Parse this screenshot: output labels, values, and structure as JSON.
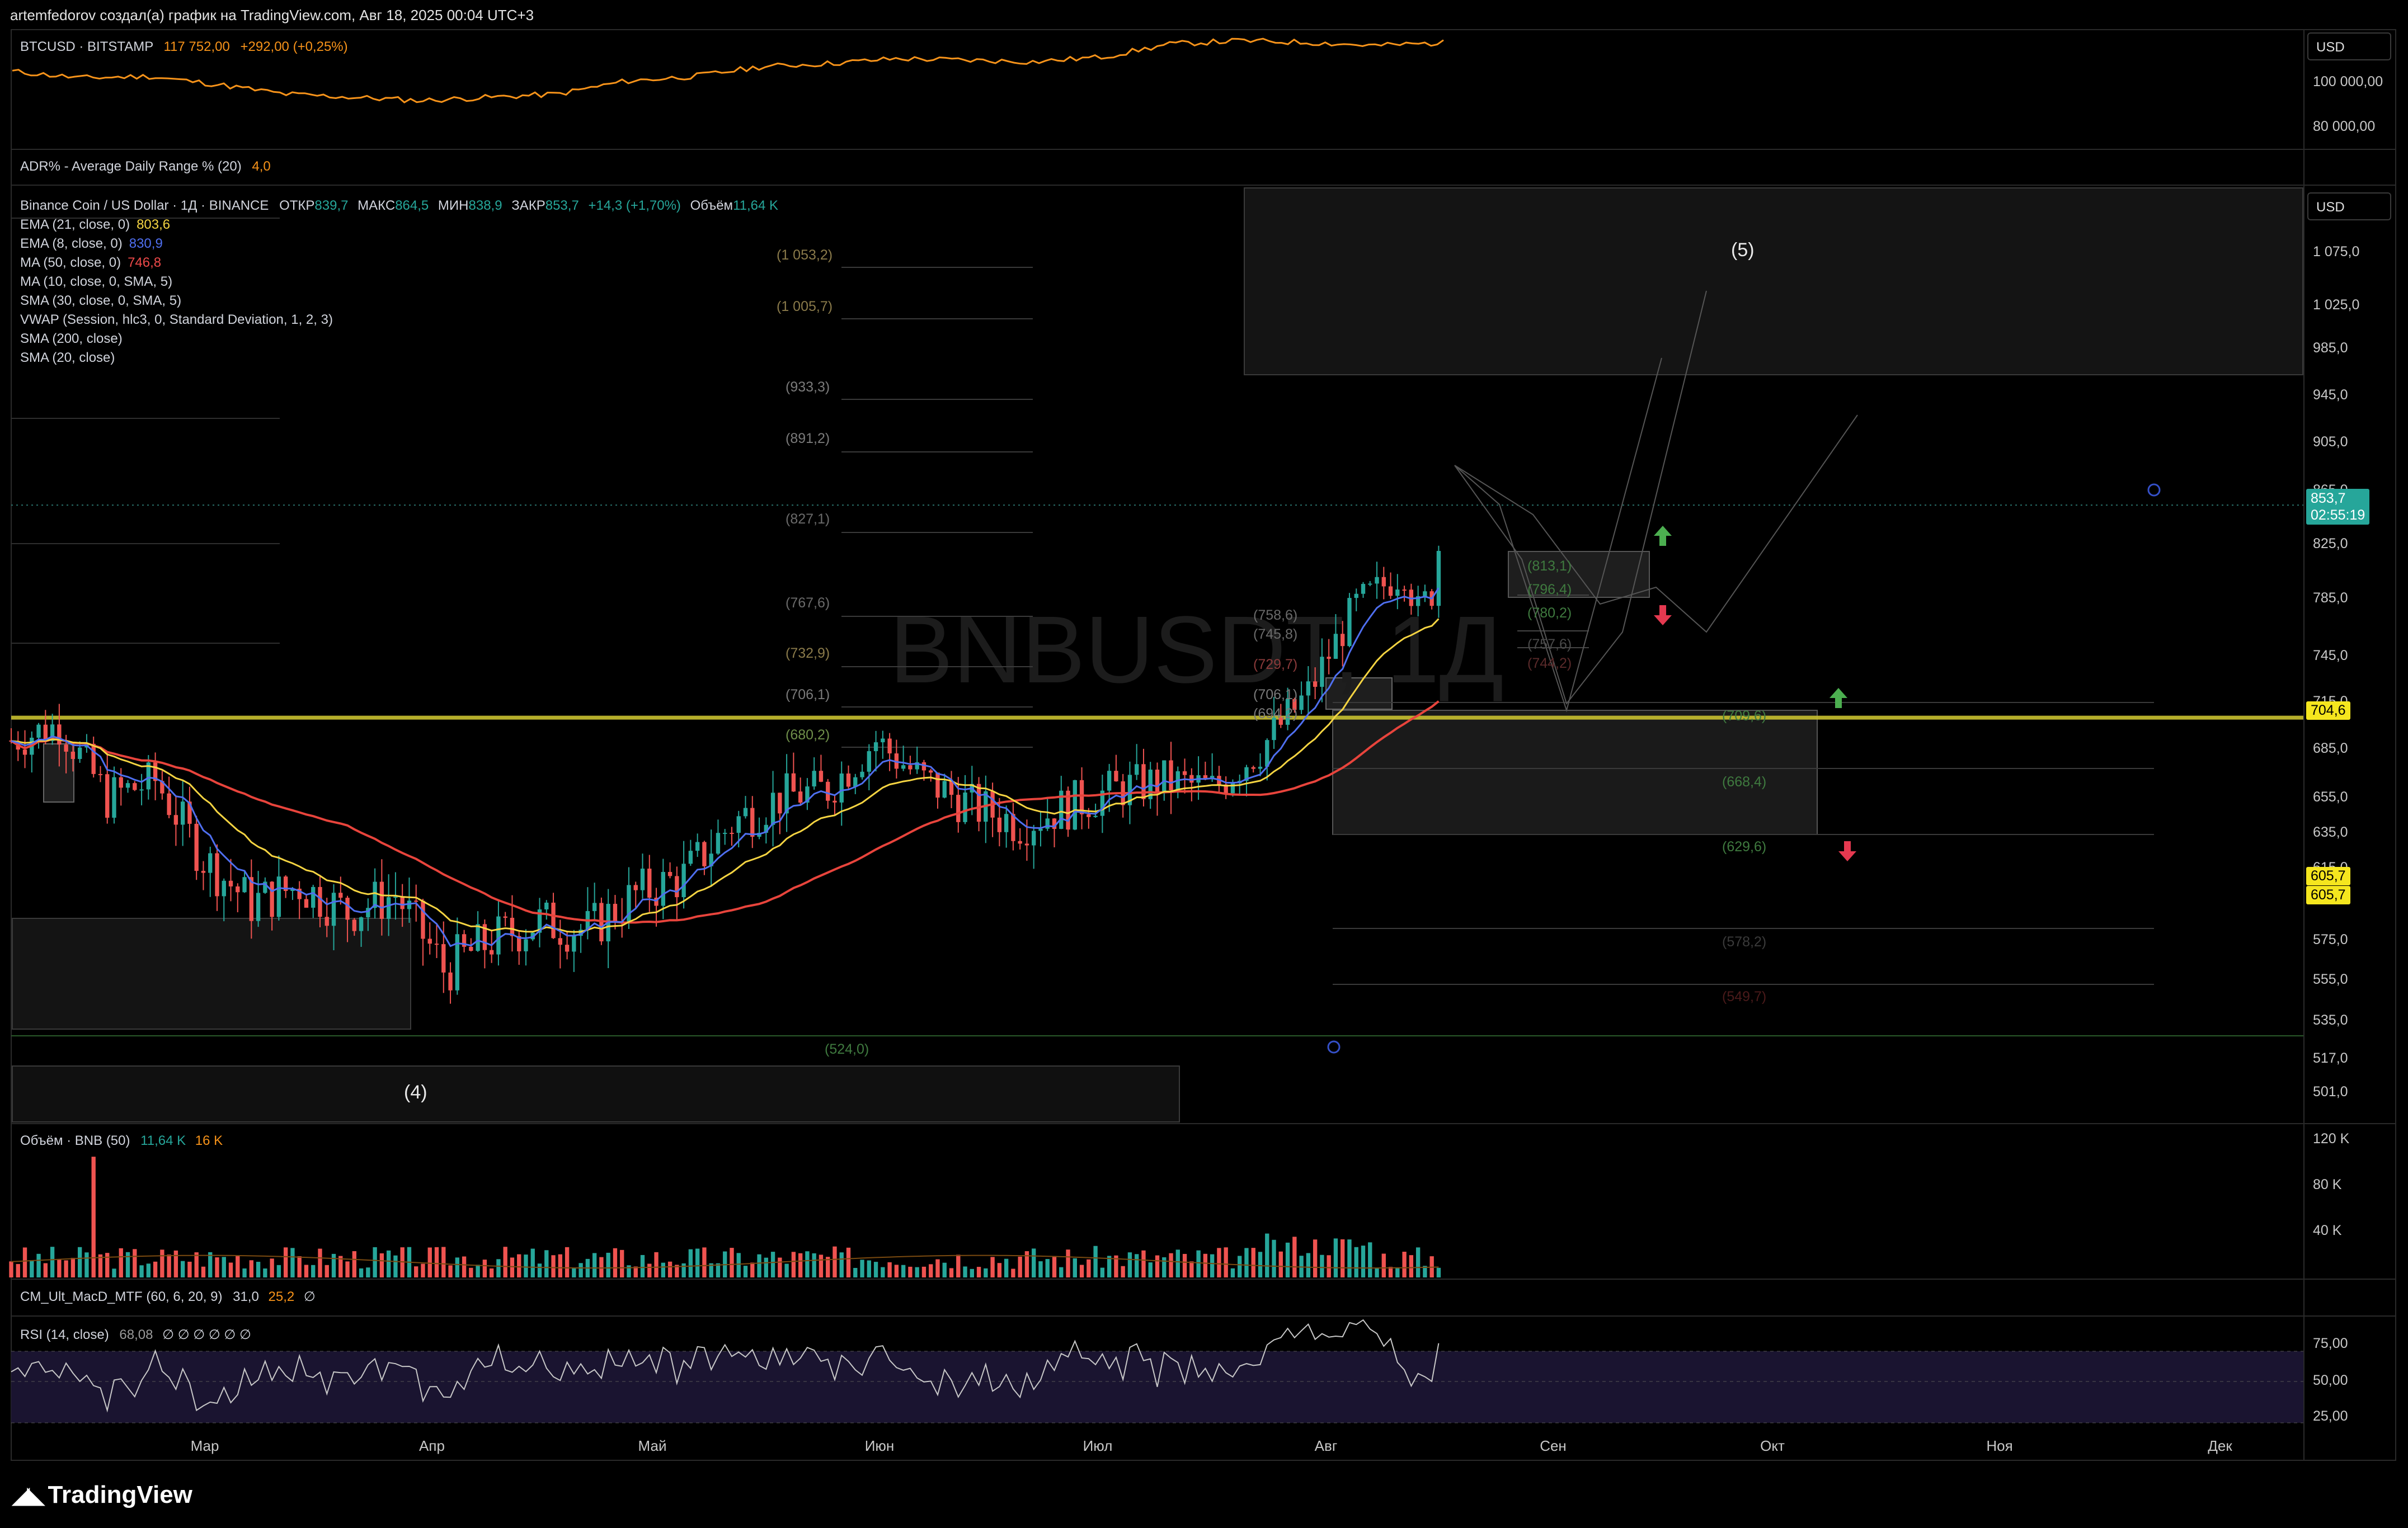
{
  "header": {
    "text": "artemfedorov создал(а) график на TradingView.com, Авг 18, 2025 00:04 UTC+3"
  },
  "btc_panel": {
    "symbol": "BTCUSD · BITSTAMP",
    "price": "117 752,00",
    "change": "+292,00 (+0,25%)",
    "currency": "USD",
    "ticks": [
      "100 000,00",
      "80 000,00"
    ]
  },
  "adr_panel": {
    "label": "ADR% - Average Daily Range % (20)",
    "value": "4,0"
  },
  "main_panel": {
    "symbol": "Binance Coin / US Dollar · 1Д · BINANCE",
    "ohlc": [
      {
        "k": "ОТКР",
        "v": "839,7"
      },
      {
        "k": "МАКС",
        "v": "864,5"
      },
      {
        "k": "МИН",
        "v": "838,9"
      },
      {
        "k": "ЗАКР",
        "v": "853,7"
      }
    ],
    "change": "+14,3 (+1,70%)",
    "volume_label": "Объём",
    "volume_value": "11,64 K",
    "watermark": "BNBUSDT, 1Д",
    "currency": "USD",
    "indicators": [
      {
        "name": "EMA (21, close, 0)",
        "value": "803,6",
        "color": "#f5d442"
      },
      {
        "name": "EMA (8, close, 0)",
        "value": "830,9",
        "color": "#4f6ff0"
      },
      {
        "name": "MA (50, close, 0)",
        "value": "746,8",
        "color": "#ef4a4a"
      },
      {
        "name": "MA (10, close, 0, SMA, 5)",
        "value": "",
        "color": ""
      },
      {
        "name": "SMA (30, close, 0, SMA, 5)",
        "value": "",
        "color": ""
      },
      {
        "name": "VWAP (Session, hlc3, 0, Standard Deviation, 1, 2, 3)",
        "value": "",
        "color": ""
      },
      {
        "name": "SMA (200, close)",
        "value": "",
        "color": ""
      },
      {
        "name": "SMA (20, close)",
        "value": "",
        "color": ""
      }
    ],
    "ticks": [
      "1 075,0",
      "1 025,0",
      "985,0",
      "945,0",
      "905,0",
      "865,0",
      "825,0",
      "785,0",
      "745,0",
      "715,0",
      "685,0",
      "655,0",
      "635,0",
      "615,0",
      "575,0",
      "555,0",
      "535,0",
      "517,0",
      "501,0"
    ],
    "last_price": "853,7",
    "countdown": "02:55:19",
    "level_tag": "704,6",
    "low_tag_1": "605,7",
    "low_tag_2": "605,7",
    "wave_5": "(5)",
    "wave_4": "(4)",
    "fib_left": [
      "(1 053,2)",
      "(1 005,7)",
      "(933,3)",
      "(891,2)",
      "(827,1)",
      "(767,6)",
      "(732,9)",
      "(706,1)",
      "(680,2)",
      "(524,0)"
    ],
    "fib_mid": [
      "(758,6)",
      "(745,8)",
      "(729,7)",
      "(706,1)",
      "(694,2)"
    ],
    "fib_box1": [
      "(813,1)",
      "(796,4)",
      "(780,2)",
      "(757,6)",
      "(744,2)"
    ],
    "fib_box2": [
      "(709,6)",
      "(668,4)",
      "(629,6)",
      "(578,2)",
      "(549,7)"
    ]
  },
  "volume_panel": {
    "label": "Объём · BNB (50)",
    "v1": "11,64 K",
    "v2": "16 K",
    "ticks": [
      "120 K",
      "80 K",
      "40 K"
    ]
  },
  "macd_panel": {
    "label": "CM_Ult_MacD_MTF (60, 6, 20, 9)",
    "v1": "31,0",
    "v2": "25,2",
    "v3": "∅"
  },
  "rsi_panel": {
    "label": "RSI (14, close)",
    "value": "68,08",
    "nulls": "∅ ∅ ∅ ∅ ∅ ∅",
    "ticks": [
      "75,00",
      "50,00",
      "25,00"
    ]
  },
  "time_axis": [
    "Мар",
    "Апр",
    "Май",
    "Июн",
    "Июл",
    "Авг",
    "Сен",
    "Окт",
    "Ноя",
    "Дек"
  ],
  "logo": "TradingView",
  "colors": {
    "up": "#26a69a",
    "down": "#ef5350",
    "btc": "#f7931a",
    "level": "#c9c130",
    "accent_teal": "#26a69a"
  },
  "chart_data": {
    "type": "candlestick",
    "title": "Binance Coin / US Dollar · 1Д · BINANCE",
    "ylim": [
      495,
      1090
    ],
    "x_start": "2025-01-20",
    "x_end": "2025-12-20",
    "bnb_close_weekly": [
      690,
      700,
      655,
      665,
      620,
      595,
      605,
      590,
      600,
      560,
      575,
      585,
      580,
      600,
      610,
      640,
      655,
      660,
      690,
      665,
      650,
      640,
      650,
      660,
      665,
      660,
      685,
      720,
      780,
      805,
      775,
      790,
      855
    ],
    "bnb_dates_weekly": [
      "2025-01-20",
      "2025-01-27",
      "2025-02-03",
      "2025-02-10",
      "2025-02-17",
      "2025-02-24",
      "2025-03-03",
      "2025-03-10",
      "2025-03-17",
      "2025-03-24",
      "2025-03-31",
      "2025-04-07",
      "2025-04-14",
      "2025-04-21",
      "2025-04-28",
      "2025-05-05",
      "2025-05-12",
      "2025-05-19",
      "2025-05-26",
      "2025-06-02",
      "2025-06-09",
      "2025-06-16",
      "2025-06-23",
      "2025-06-30",
      "2025-07-07",
      "2025-07-14",
      "2025-07-21",
      "2025-07-28",
      "2025-08-04",
      "2025-08-11",
      "2025-08-13",
      "2025-08-15",
      "2025-08-17"
    ],
    "key_levels": [
      704.6,
      605.7,
      853.7
    ],
    "btc_close": [
      100000,
      96000,
      97000,
      92000,
      86000,
      84000,
      82000,
      84000,
      86000,
      94000,
      97000,
      103000,
      105000,
      108000,
      107000,
      106000,
      109000,
      117000,
      119000,
      118000,
      116000,
      117752
    ]
  }
}
